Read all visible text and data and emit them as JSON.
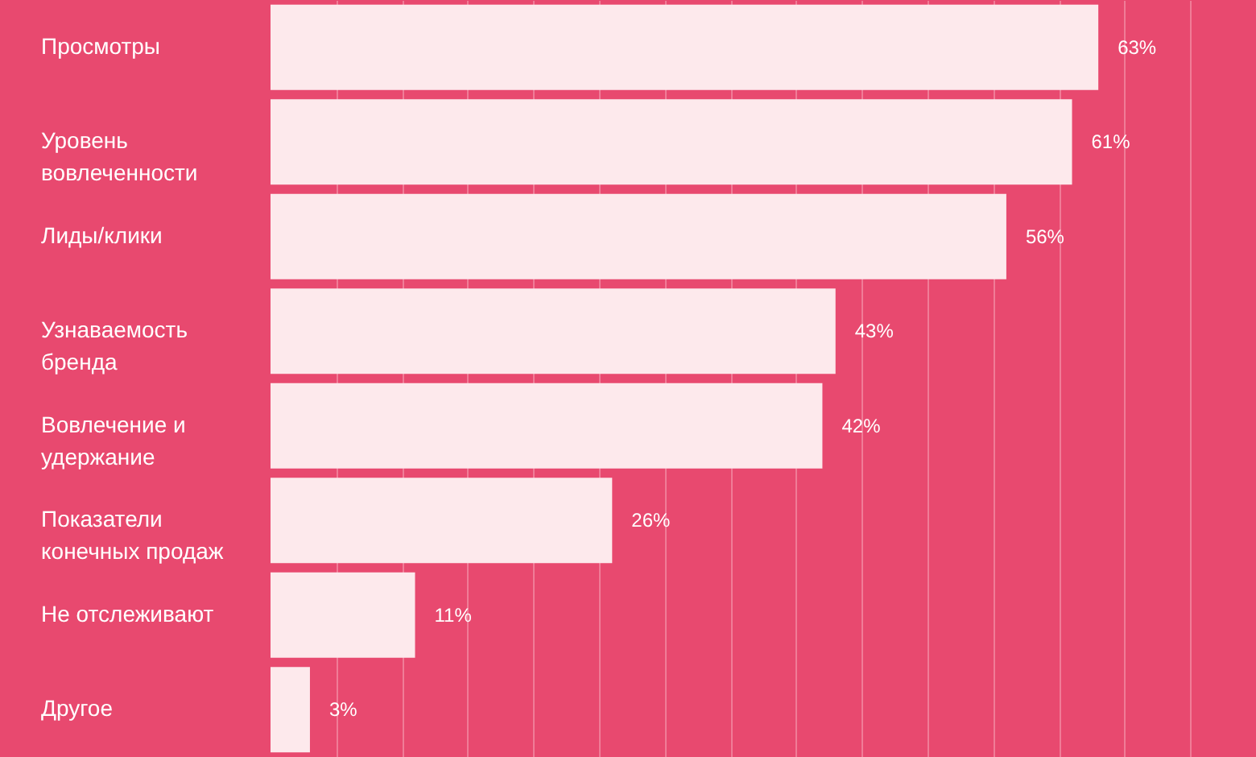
{
  "chart_data": {
    "type": "bar",
    "orientation": "horizontal",
    "categories": [
      "Просмотры",
      "Уровень\nвовлеченности",
      "Лиды/клики",
      "Узнаваемость\nбренда",
      "Вовлечение и\nудержание",
      "Показатели\nконечных продаж",
      "Не отслеживают",
      "Другое"
    ],
    "values": [
      63,
      61,
      56,
      43,
      42,
      26,
      11,
      3
    ],
    "value_labels": [
      "63%",
      "61%",
      "56%",
      "43%",
      "42%",
      "26%",
      "11%",
      "3%"
    ],
    "color": "#fde9ec",
    "xlim": [
      0,
      75
    ],
    "xticks": [
      {
        "value": 5,
        "label": null
      },
      {
        "value": 10,
        "label": null
      },
      {
        "value": 15,
        "label": null
      },
      {
        "value": 20,
        "label": null
      },
      {
        "value": 25,
        "label": null
      },
      {
        "value": 30,
        "label": null
      },
      {
        "value": 35,
        "label": null
      },
      {
        "value": 40,
        "label": null
      },
      {
        "value": 45,
        "label": null
      },
      {
        "value": 50,
        "label": null
      },
      {
        "value": 55,
        "label": null
      },
      {
        "value": 60,
        "label": null
      },
      {
        "value": 65,
        "label": null
      },
      {
        "value": 70,
        "label": null
      }
    ],
    "grid": "x",
    "tick_labels": "y"
  }
}
